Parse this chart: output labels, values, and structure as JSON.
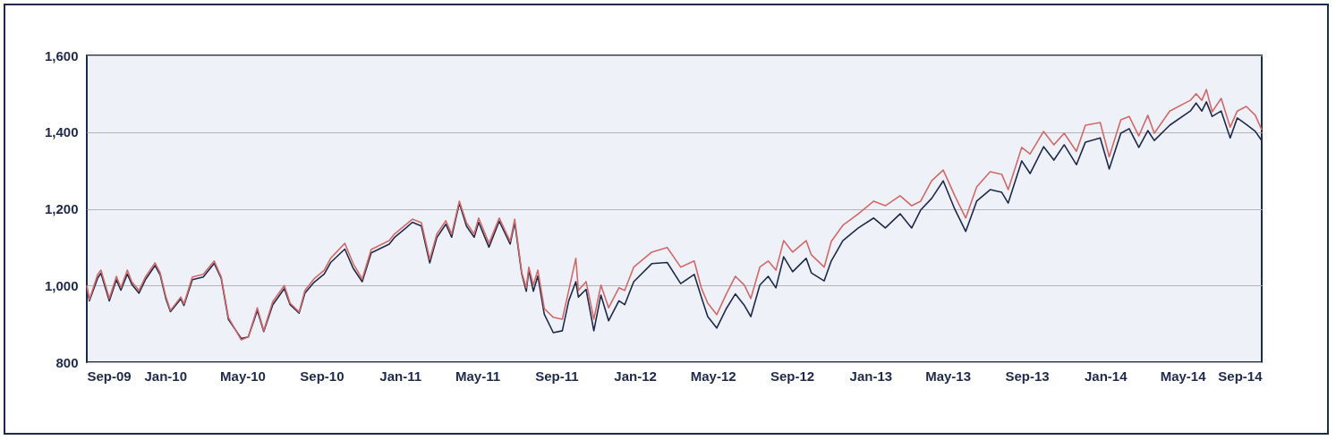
{
  "chart_data": {
    "type": "line",
    "x": [
      "2009-09-01",
      "2009-09-05",
      "2009-09-18",
      "2009-09-23",
      "2009-10-06",
      "2009-10-17",
      "2009-10-24",
      "2009-11-03",
      "2009-11-10",
      "2009-11-21",
      "2009-12-01",
      "2009-12-16",
      "2009-12-24",
      "2010-01-02",
      "2010-01-09",
      "2010-01-25",
      "2010-01-30",
      "2010-02-12",
      "2010-03-01",
      "2010-03-18",
      "2010-03-29",
      "2010-04-09",
      "2010-04-29",
      "2010-05-10",
      "2010-05-24",
      "2010-06-03",
      "2010-06-17",
      "2010-07-05",
      "2010-07-14",
      "2010-07-28",
      "2010-08-06",
      "2010-08-20",
      "2010-09-05",
      "2010-09-15",
      "2010-10-07",
      "2010-10-20",
      "2010-11-03",
      "2010-11-17",
      "2010-12-15",
      "2010-12-23",
      "2011-01-12",
      "2011-01-20",
      "2011-02-03",
      "2011-02-16",
      "2011-02-27",
      "2011-03-13",
      "2011-03-22",
      "2011-04-03",
      "2011-04-14",
      "2011-04-26",
      "2011-05-03",
      "2011-05-19",
      "2011-06-04",
      "2011-06-21",
      "2011-06-28",
      "2011-07-09",
      "2011-07-16",
      "2011-07-20",
      "2011-07-27",
      "2011-08-03",
      "2011-08-13",
      "2011-08-27",
      "2011-09-10",
      "2011-09-20",
      "2011-10-01",
      "2011-10-05",
      "2011-10-17",
      "2011-10-29",
      "2011-11-09",
      "2011-11-21",
      "2011-12-07",
      "2011-12-16",
      "2011-12-30",
      "2012-01-27",
      "2012-02-20",
      "2012-03-12",
      "2012-04-02",
      "2012-04-13",
      "2012-04-23",
      "2012-05-07",
      "2012-05-22",
      "2012-06-05",
      "2012-06-19",
      "2012-06-29",
      "2012-07-13",
      "2012-07-26",
      "2012-08-07",
      "2012-08-19",
      "2012-09-02",
      "2012-09-23",
      "2012-10-01",
      "2012-10-21",
      "2012-11-01",
      "2012-11-19",
      "2012-12-13",
      "2013-01-06",
      "2013-01-24",
      "2013-02-16",
      "2013-03-06",
      "2013-03-20",
      "2013-04-06",
      "2013-04-24",
      "2013-05-12",
      "2013-05-29",
      "2013-06-15",
      "2013-07-06",
      "2013-07-24",
      "2013-08-03",
      "2013-08-24",
      "2013-09-06",
      "2013-09-27",
      "2013-10-13",
      "2013-10-29",
      "2013-11-17",
      "2013-12-01",
      "2013-12-24",
      "2014-01-07",
      "2014-01-25",
      "2014-02-07",
      "2014-02-22",
      "2014-03-08",
      "2014-03-18",
      "2014-04-11",
      "2014-05-13",
      "2014-05-22",
      "2014-05-31",
      "2014-06-07",
      "2014-06-16",
      "2014-06-30",
      "2014-07-14",
      "2014-07-25",
      "2014-08-08",
      "2014-08-22",
      "2014-09-01"
    ],
    "series": [
      {
        "color": "#1f2a4a",
        "values": [
          995,
          960,
          1020,
          1032,
          960,
          1015,
          988,
          1030,
          1003,
          980,
          1015,
          1052,
          1028,
          965,
          932,
          965,
          948,
          1015,
          1022,
          1058,
          1018,
          912,
          862,
          866,
          935,
          880,
          950,
          992,
          950,
          928,
          980,
          1008,
          1030,
          1060,
          1095,
          1045,
          1010,
          1085,
          1108,
          1125,
          1153,
          1165,
          1155,
          1059,
          1125,
          1160,
          1126,
          1215,
          1155,
          1126,
          1165,
          1100,
          1168,
          1108,
          1165,
          1030,
          985,
          1040,
          985,
          1025,
          925,
          877,
          882,
          960,
          1010,
          970,
          990,
          882,
          975,
          908,
          960,
          950,
          1010,
          1057,
          1060,
          1005,
          1029,
          970,
          919,
          889,
          940,
          978,
          948,
          919,
          1001,
          1024,
          994,
          1075,
          1036,
          1071,
          1033,
          1012,
          1064,
          1117,
          1150,
          1176,
          1150,
          1187,
          1150,
          1197,
          1227,
          1273,
          1199,
          1141,
          1220,
          1250,
          1243,
          1215,
          1325,
          1292,
          1362,
          1327,
          1367,
          1315,
          1374,
          1385,
          1304,
          1397,
          1409,
          1360,
          1404,
          1378,
          1418,
          1455,
          1476,
          1455,
          1479,
          1441,
          1455,
          1385,
          1437,
          1420,
          1402,
          1378
        ]
      },
      {
        "color": "#d06a6a",
        "values": [
          1000,
          963,
          1029,
          1040,
          966,
          1024,
          994,
          1040,
          1010,
          987,
          1022,
          1059,
          1033,
          970,
          935,
          970,
          952,
          1022,
          1029,
          1064,
          1022,
          917,
          858,
          866,
          942,
          882,
          958,
          1000,
          954,
          931,
          987,
          1017,
          1040,
          1071,
          1110,
          1057,
          1017,
          1094,
          1117,
          1134,
          1162,
          1173,
          1164,
          1068,
          1134,
          1169,
          1134,
          1220,
          1164,
          1134,
          1176,
          1110,
          1176,
          1115,
          1173,
          1033,
          994,
          1048,
          1001,
          1040,
          940,
          917,
          912,
          987,
          1071,
          987,
          1010,
          912,
          1001,
          942,
          994,
          987,
          1048,
          1087,
          1099,
          1048,
          1064,
          994,
          954,
          924,
          978,
          1024,
          1001,
          966,
          1048,
          1064,
          1040,
          1117,
          1087,
          1117,
          1080,
          1048,
          1115,
          1157,
          1187,
          1220,
          1208,
          1234,
          1208,
          1220,
          1273,
          1301,
          1234,
          1176,
          1257,
          1297,
          1290,
          1250,
          1360,
          1343,
          1402,
          1367,
          1397,
          1350,
          1418,
          1425,
          1336,
          1432,
          1441,
          1390,
          1444,
          1397,
          1455,
          1483,
          1500,
          1483,
          1511,
          1453,
          1488,
          1413,
          1455,
          1467,
          1444,
          1406
        ]
      }
    ],
    "xlim": [
      "2009-09-01",
      "2014-09-01"
    ],
    "xticks": [
      {
        "value": "2009-09-01",
        "label": "Sep-09"
      },
      {
        "value": "2010-01-01",
        "label": "Jan-10"
      },
      {
        "value": "2010-05-01",
        "label": "May-10"
      },
      {
        "value": "2010-09-01",
        "label": "Sep-10"
      },
      {
        "value": "2011-01-01",
        "label": "Jan-11"
      },
      {
        "value": "2011-05-01",
        "label": "May-11"
      },
      {
        "value": "2011-09-01",
        "label": "Sep-11"
      },
      {
        "value": "2012-01-01",
        "label": "Jan-12"
      },
      {
        "value": "2012-05-01",
        "label": "May-12"
      },
      {
        "value": "2012-09-01",
        "label": "Sep-12"
      },
      {
        "value": "2013-01-01",
        "label": "Jan-13"
      },
      {
        "value": "2013-05-01",
        "label": "May-13"
      },
      {
        "value": "2013-09-01",
        "label": "Sep-13"
      },
      {
        "value": "2014-01-01",
        "label": "Jan-14"
      },
      {
        "value": "2014-05-01",
        "label": "May-14"
      },
      {
        "value": "2014-09-01",
        "label": "Sep-14"
      }
    ],
    "ylim": [
      800,
      1600
    ],
    "yticks": [
      {
        "value": 800,
        "label": "800"
      },
      {
        "value": 1000,
        "label": "1,000"
      },
      {
        "value": 1200,
        "label": "1,200"
      },
      {
        "value": 1400,
        "label": "1,400"
      },
      {
        "value": 1600,
        "label": "1,600"
      }
    ],
    "grid": "y"
  }
}
